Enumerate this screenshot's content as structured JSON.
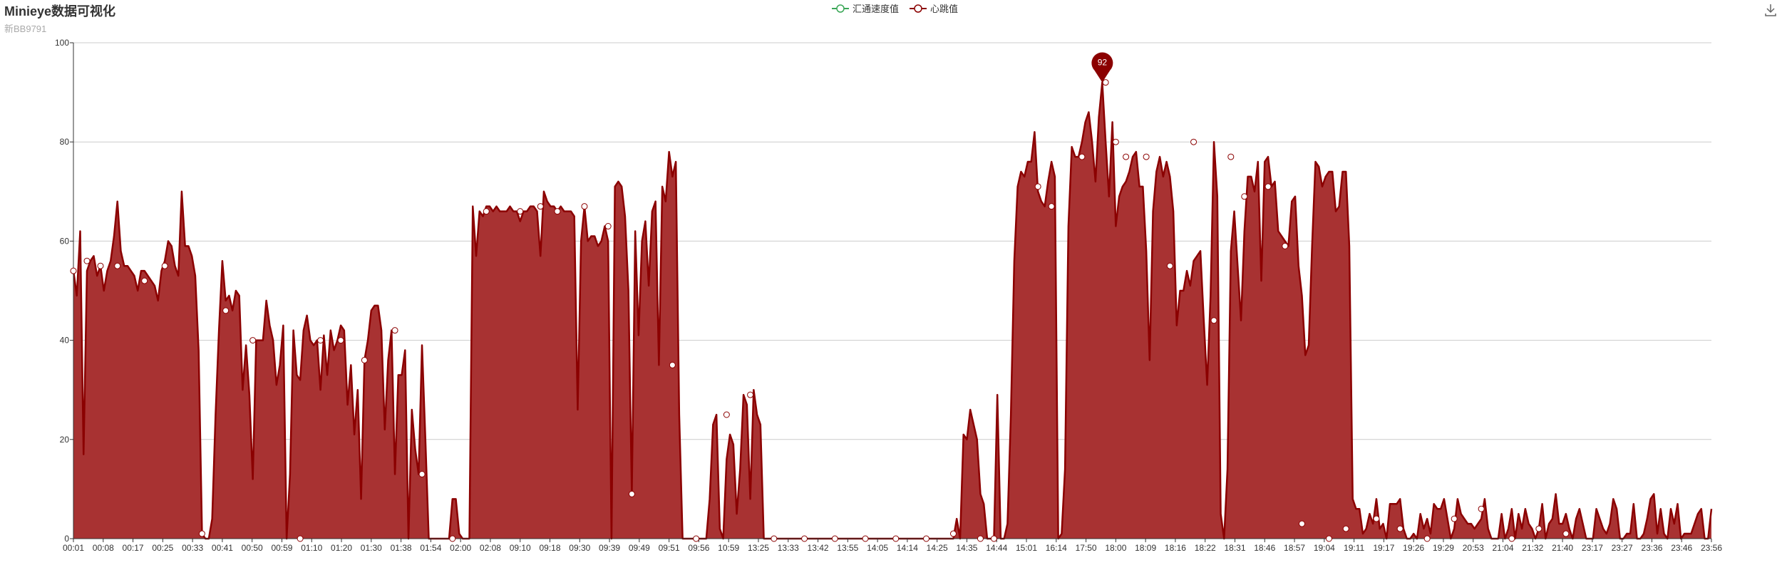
{
  "header": {
    "title": "Minieye数据可视化",
    "subtitle": "新BB9791"
  },
  "legend": {
    "items": [
      {
        "label": "汇通速度值",
        "color": "#3aa757"
      },
      {
        "label": "心跳值",
        "color": "#8b0000"
      }
    ]
  },
  "toolbox": {
    "download_icon": "download-icon"
  },
  "colors": {
    "heartbeat_line": "#8b0000",
    "heartbeat_fill": "#a83232",
    "speed_line": "#3aa757",
    "axis": "#333333",
    "grid": "#cccccc"
  },
  "chart_data": {
    "type": "area",
    "title": "Minieye数据可视化",
    "subtitle": "新BB9791",
    "xlabel": "",
    "ylabel": "",
    "ylim": [
      0,
      100
    ],
    "yticks": [
      0,
      20,
      40,
      60,
      80,
      100
    ],
    "grid": true,
    "legend_position": "top-center",
    "x_tick_labels": [
      "00:01",
      "00:08",
      "00:17",
      "00:25",
      "00:33",
      "00:41",
      "00:50",
      "00:59",
      "01:10",
      "01:20",
      "01:30",
      "01:38",
      "01:54",
      "02:00",
      "02:08",
      "09:10",
      "09:18",
      "09:30",
      "09:39",
      "09:49",
      "09:51",
      "09:56",
      "10:59",
      "13:25",
      "13:33",
      "13:42",
      "13:55",
      "14:05",
      "14:14",
      "14:25",
      "14:35",
      "14:44",
      "15:01",
      "16:14",
      "17:50",
      "18:00",
      "18:09",
      "18:16",
      "18:22",
      "18:31",
      "18:46",
      "18:57",
      "19:04",
      "19:11",
      "19:17",
      "19:26",
      "19:29",
      "20:53",
      "21:04",
      "21:32",
      "21:40",
      "23:17",
      "23:27",
      "23:36",
      "23:46",
      "23:56"
    ],
    "max_marker": {
      "label": "92",
      "value": 92
    },
    "series": [
      {
        "name": "汇通速度值",
        "values": []
      },
      {
        "name": "心跳值",
        "values": [
          54,
          49,
          62,
          17,
          54,
          56,
          57,
          53,
          55,
          50,
          54,
          56,
          61,
          68,
          58,
          55,
          55,
          54,
          53,
          50,
          54,
          54,
          53,
          52,
          51,
          48,
          54,
          56,
          60,
          59,
          55,
          53,
          70,
          59,
          59,
          57,
          53,
          38,
          1,
          0,
          0,
          4,
          25,
          42,
          56,
          48,
          49,
          46,
          50,
          49,
          30,
          39,
          29,
          12,
          40,
          40,
          40,
          48,
          43,
          40,
          31,
          35,
          43,
          0,
          13,
          42,
          33,
          32,
          42,
          45,
          40,
          39,
          40,
          30,
          41,
          33,
          42,
          38,
          40,
          43,
          42,
          27,
          35,
          21,
          30,
          8,
          36,
          40,
          46,
          47,
          47,
          42,
          22,
          36,
          42,
          13,
          33,
          33,
          38,
          0,
          26,
          18,
          13,
          39,
          20,
          0,
          0,
          0,
          0,
          0,
          0,
          0,
          8,
          8,
          1,
          0,
          0,
          0,
          67,
          57,
          66,
          65,
          67,
          67,
          66,
          67,
          66,
          66,
          66,
          67,
          66,
          66,
          64,
          66,
          66,
          67,
          67,
          66,
          57,
          70,
          68,
          67,
          67,
          66,
          67,
          66,
          66,
          66,
          65,
          26,
          60,
          67,
          60,
          61,
          61,
          59,
          60,
          63,
          60,
          0,
          71,
          72,
          71,
          65,
          50,
          9,
          62,
          41,
          60,
          64,
          51,
          66,
          68,
          35,
          71,
          68,
          78,
          73,
          76,
          25,
          0,
          0,
          0,
          0,
          0,
          0,
          0,
          0,
          8,
          23,
          25,
          2,
          0,
          16,
          21,
          19,
          5,
          14,
          29,
          27,
          8,
          30,
          25,
          23,
          0,
          0,
          0,
          0,
          0,
          0,
          0,
          0,
          0,
          0,
          0,
          0,
          0,
          0,
          0,
          0,
          0,
          0,
          0,
          0,
          0,
          0,
          0,
          0,
          0,
          0,
          0,
          0,
          0,
          0,
          0,
          0,
          0,
          0,
          0,
          0,
          0,
          0,
          0,
          0,
          0,
          0,
          0,
          0,
          0,
          0,
          0,
          0,
          0,
          0,
          0,
          0,
          0,
          0,
          0,
          0,
          0,
          4,
          0,
          21,
          20,
          26,
          23,
          20,
          9,
          7,
          0,
          0,
          0,
          29,
          0,
          0,
          3,
          25,
          56,
          71,
          74,
          73,
          76,
          76,
          82,
          70,
          68,
          67,
          72,
          76,
          73,
          0,
          1,
          14,
          63,
          79,
          77,
          77,
          80,
          84,
          86,
          80,
          72,
          85,
          92,
          80,
          69,
          84,
          63,
          69,
          71,
          72,
          74,
          77,
          78,
          71,
          71,
          58,
          36,
          66,
          74,
          77,
          73,
          76,
          73,
          66,
          43,
          50,
          50,
          54,
          51,
          56,
          57,
          58,
          44,
          31,
          49,
          80,
          69,
          5,
          0,
          14,
          58,
          66,
          55,
          44,
          62,
          73,
          73,
          70,
          76,
          52,
          76,
          77,
          71,
          72,
          62,
          61,
          60,
          59,
          68,
          69,
          55,
          49,
          37,
          39,
          59,
          76,
          75,
          71,
          73,
          74,
          74,
          66,
          67,
          74,
          74,
          59,
          8,
          6,
          6,
          1,
          2,
          5,
          3,
          8,
          2,
          3,
          0,
          7,
          7,
          7,
          8,
          2,
          0,
          0,
          1,
          0,
          5,
          2,
          4,
          1,
          7,
          6,
          6,
          8,
          4,
          0,
          2,
          8,
          5,
          4,
          3,
          3,
          2,
          3,
          4,
          8,
          2,
          0,
          0,
          0,
          5,
          0,
          2,
          6,
          0,
          5,
          2,
          6,
          3,
          2,
          0,
          2,
          7,
          0,
          3,
          4,
          9,
          3,
          3,
          5,
          2,
          0,
          4,
          6,
          3,
          0,
          0,
          0,
          6,
          4,
          2,
          1,
          3,
          8,
          6,
          0,
          0,
          1,
          1,
          7,
          0,
          0,
          1,
          4,
          8,
          9,
          1,
          6,
          1,
          0,
          6,
          3,
          7,
          0,
          1,
          1,
          1,
          3,
          5,
          6,
          0,
          0,
          6
        ]
      }
    ],
    "markers": [
      [
        0,
        54
      ],
      [
        4,
        56
      ],
      [
        8,
        55
      ],
      [
        13,
        55
      ],
      [
        21,
        52
      ],
      [
        27,
        55
      ],
      [
        38,
        1
      ],
      [
        45,
        46
      ],
      [
        53,
        40
      ],
      [
        67,
        0
      ],
      [
        73,
        40
      ],
      [
        79,
        40
      ],
      [
        86,
        36
      ],
      [
        95,
        42
      ],
      [
        103,
        13
      ],
      [
        112,
        0
      ],
      [
        122,
        66
      ],
      [
        132,
        66
      ],
      [
        138,
        67
      ],
      [
        143,
        66
      ],
      [
        151,
        67
      ],
      [
        158,
        63
      ],
      [
        165,
        9
      ],
      [
        177,
        35
      ],
      [
        184,
        0
      ],
      [
        193,
        25
      ],
      [
        200,
        29
      ],
      [
        207,
        0
      ],
      [
        216,
        0
      ],
      [
        225,
        0
      ],
      [
        234,
        0
      ],
      [
        243,
        0
      ],
      [
        252,
        0
      ],
      [
        260,
        1
      ],
      [
        268,
        0
      ],
      [
        272,
        0
      ],
      [
        285,
        71
      ],
      [
        289,
        67
      ],
      [
        298,
        77
      ],
      [
        305,
        92
      ],
      [
        308,
        80
      ],
      [
        311,
        77
      ],
      [
        317,
        77
      ],
      [
        324,
        55
      ],
      [
        331,
        80
      ],
      [
        337,
        44
      ],
      [
        342,
        77
      ],
      [
        346,
        69
      ],
      [
        353,
        71
      ],
      [
        358,
        59
      ],
      [
        363,
        3
      ],
      [
        371,
        0
      ],
      [
        376,
        2
      ],
      [
        385,
        4
      ],
      [
        392,
        2
      ],
      [
        400,
        0
      ],
      [
        408,
        4
      ],
      [
        416,
        6
      ],
      [
        425,
        0
      ],
      [
        433,
        2
      ],
      [
        441,
        1
      ]
    ]
  }
}
